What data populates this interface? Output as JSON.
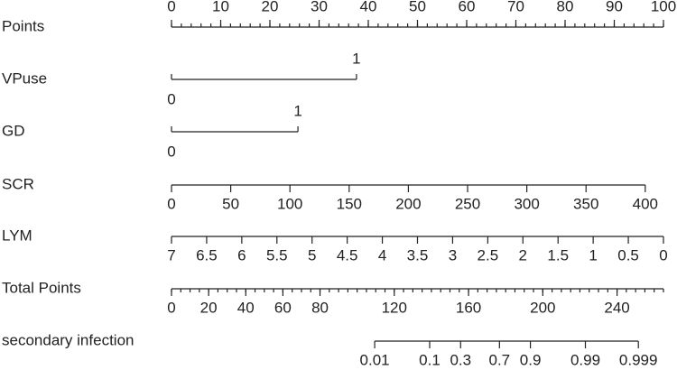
{
  "chart_data": {
    "type": "nomogram",
    "rows": [
      {
        "name": "Points",
        "xlim": [
          0,
          100
        ],
        "points_range": [
          0,
          100
        ],
        "label_side": "top",
        "ticks": [
          0,
          10,
          20,
          30,
          40,
          50,
          60,
          70,
          80,
          90,
          100
        ],
        "minor_ticks": [
          0,
          2,
          4,
          6,
          8,
          10,
          12,
          14,
          16,
          18,
          20,
          22,
          24,
          26,
          28,
          30,
          32,
          34,
          36,
          38,
          40,
          42,
          44,
          46,
          48,
          50,
          52,
          54,
          56,
          58,
          60,
          62,
          64,
          66,
          68,
          70,
          72,
          74,
          76,
          78,
          80,
          82,
          84,
          86,
          88,
          90,
          92,
          94,
          96,
          98,
          100
        ]
      },
      {
        "name": "VPuse",
        "categories": [
          "0",
          "1"
        ],
        "points": [
          0,
          37.6
        ]
      },
      {
        "name": "GD",
        "categories": [
          "0",
          "1"
        ],
        "points": [
          0,
          25.7
        ]
      },
      {
        "name": "SCR",
        "xlim": [
          0,
          400
        ],
        "points_range": [
          0,
          96.3
        ],
        "label_side": "bottom",
        "ticks": [
          0,
          50,
          100,
          150,
          200,
          250,
          300,
          350,
          400
        ]
      },
      {
        "name": "LYM",
        "xlim": [
          7,
          0
        ],
        "points_range": [
          0,
          100
        ],
        "label_side": "bottom",
        "ticks": [
          7,
          6.5,
          6,
          5.5,
          5,
          4.5,
          4,
          3.5,
          3,
          2.5,
          2,
          1.5,
          1,
          0.5,
          0
        ]
      },
      {
        "name": "Total Points",
        "xlim": [
          0,
          265
        ],
        "points_range": [
          0,
          100
        ],
        "label_side": "bottom",
        "ticks": [
          0,
          20,
          40,
          60,
          80,
          120,
          160,
          200,
          240
        ],
        "minor_ticks": [
          0,
          5,
          10,
          15,
          20,
          25,
          30,
          35,
          40,
          45,
          50,
          55,
          60,
          65,
          70,
          75,
          80,
          85,
          90,
          95,
          100,
          105,
          110,
          115,
          120,
          125,
          130,
          135,
          140,
          145,
          150,
          155,
          160,
          165,
          170,
          175,
          180,
          185,
          190,
          195,
          200,
          205,
          210,
          215,
          220,
          225,
          230,
          235,
          240,
          245,
          250,
          255,
          260,
          265
        ]
      },
      {
        "name": "secondary infection",
        "xlim": [
          0.01,
          0.999
        ],
        "points_range": [
          41.3,
          94.9
        ],
        "scale": "logit",
        "label_side": "bottom",
        "ticks": [
          0.01,
          0.1,
          0.3,
          0.7,
          0.9,
          0.99,
          0.999
        ]
      }
    ]
  }
}
